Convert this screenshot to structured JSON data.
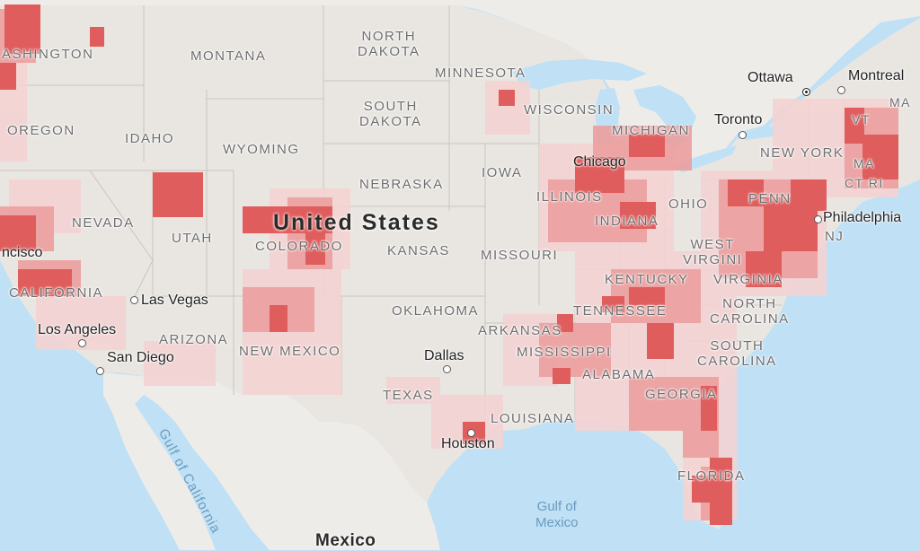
{
  "colors": {
    "water": "#bfe0f5",
    "land_us": "#e9e6e2",
    "land_other": "#eeece9",
    "heat_high": "#e05d5d",
    "heat_mid": "#ec9f9f",
    "heat_low": "#f4d3d3"
  },
  "map": {
    "country_us": "United States",
    "country_mexico": "Mexico",
    "states": [
      {
        "id": "washington",
        "label": "ASHINGTON"
      },
      {
        "id": "montana",
        "label": "MONTANA"
      },
      {
        "id": "north-dakota",
        "label": "NORTH\nDAKOTA"
      },
      {
        "id": "minnesota",
        "label": "MINNESOTA"
      },
      {
        "id": "oregon",
        "label": "OREGON"
      },
      {
        "id": "idaho",
        "label": "IDAHO"
      },
      {
        "id": "south-dakota",
        "label": "SOUTH\nDAKOTA"
      },
      {
        "id": "wisconsin",
        "label": "WISCONSIN"
      },
      {
        "id": "michigan",
        "label": "MICHIGAN"
      },
      {
        "id": "wyoming",
        "label": "WYOMING"
      },
      {
        "id": "iowa",
        "label": "IOWA"
      },
      {
        "id": "new-york",
        "label": "NEW YORK"
      },
      {
        "id": "nebraska",
        "label": "NEBRASKA"
      },
      {
        "id": "illinois",
        "label": "ILLINOIS"
      },
      {
        "id": "ohio",
        "label": "OHIO"
      },
      {
        "id": "penn",
        "label": "PENN"
      },
      {
        "id": "nevada",
        "label": "NEVADA"
      },
      {
        "id": "utah",
        "label": "UTAH"
      },
      {
        "id": "colorado",
        "label": "COLORADO"
      },
      {
        "id": "kansas",
        "label": "KANSAS"
      },
      {
        "id": "missouri",
        "label": "MISSOURI"
      },
      {
        "id": "indiana",
        "label": "INDIANA"
      },
      {
        "id": "west-virginia",
        "label": "WEST\nVIRGINI"
      },
      {
        "id": "nj",
        "label": "NJ"
      },
      {
        "id": "california",
        "label": "CALIFORNIA"
      },
      {
        "id": "kentucky",
        "label": "KENTUCKY"
      },
      {
        "id": "virginia",
        "label": "VIRGINIA"
      },
      {
        "id": "oklahoma",
        "label": "OKLAHOMA"
      },
      {
        "id": "north-carolina",
        "label": "NORTH\nCAROLINA"
      },
      {
        "id": "tennessee",
        "label": "TENNESSEE"
      },
      {
        "id": "arkansas",
        "label": "ARKANSAS"
      },
      {
        "id": "arizona",
        "label": "ARIZONA"
      },
      {
        "id": "mississippi",
        "label": "MISSISSIPPI"
      },
      {
        "id": "new-mexico",
        "label": "NEW MEXICO"
      },
      {
        "id": "south-carolina",
        "label": "SOUTH\nCAROLINA"
      },
      {
        "id": "alabama",
        "label": "ALABAMA"
      },
      {
        "id": "georgia",
        "label": "GEORGIA"
      },
      {
        "id": "texas",
        "label": "TEXAS"
      },
      {
        "id": "louisiana",
        "label": "LOUISIANA"
      },
      {
        "id": "florida",
        "label": "FLORIDA"
      },
      {
        "id": "maine-partial",
        "label": "MA"
      },
      {
        "id": "vt",
        "label": "VT"
      },
      {
        "id": "mass",
        "label": "MA"
      },
      {
        "id": "ct",
        "label": "CT RI"
      }
    ],
    "cities": [
      {
        "id": "ottawa",
        "label": "Ottawa"
      },
      {
        "id": "montreal",
        "label": "Montreal"
      },
      {
        "id": "toronto",
        "label": "Toronto"
      },
      {
        "id": "chicago",
        "label": "Chicago"
      },
      {
        "id": "philadelphia",
        "label": "Philadelphia"
      },
      {
        "id": "san-francisco",
        "label": "ncisco"
      },
      {
        "id": "las-vegas",
        "label": "Las Vegas"
      },
      {
        "id": "los-angeles",
        "label": "Los Angeles"
      },
      {
        "id": "san-diego",
        "label": "San Diego"
      },
      {
        "id": "dallas",
        "label": "Dallas"
      },
      {
        "id": "houston",
        "label": "Houston"
      }
    ],
    "water": [
      {
        "id": "gulf-of-california",
        "label": "Gulf of California"
      },
      {
        "id": "gulf-of-mexico",
        "label": "Gulf of\nMexico"
      }
    ]
  }
}
